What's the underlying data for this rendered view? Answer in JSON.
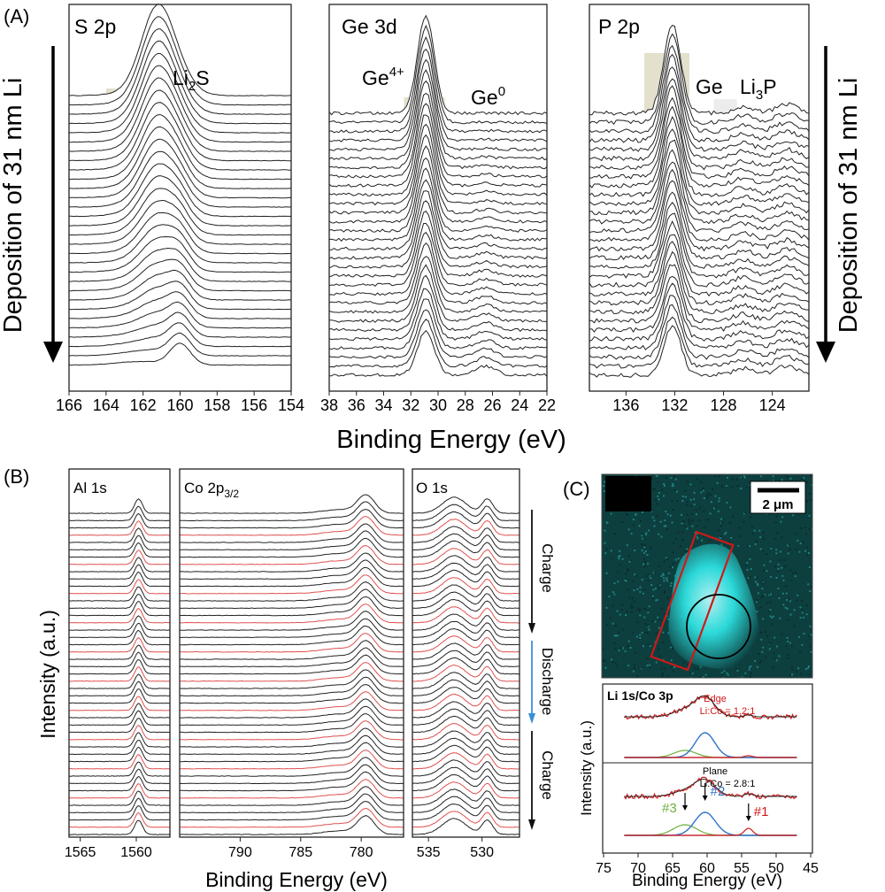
{
  "panel_labels": {
    "a": "(A)",
    "b": "(B)",
    "c": "(C)"
  },
  "panel_a": {
    "side_label": "Deposition of 31 nm Li",
    "xlabel": "Binding Energy (eV)",
    "trace_count": 30,
    "s2p": {
      "title": "S 2p",
      "species": "Li",
      "species_sub": "2",
      "species_tail": "S",
      "ticks": [
        "166",
        "164",
        "162",
        "160",
        "158",
        "156",
        "154"
      ],
      "xlim": [
        166,
        154
      ],
      "main_peak": 161.3,
      "li2s_peak": 160.0,
      "band_main": [
        164.0,
        159.2
      ],
      "band_li2s": [
        161.0,
        159.2
      ]
    },
    "ge3d": {
      "title": "Ge 3d",
      "ox_label": "Ge",
      "ox_sup": "4+",
      "met_label": "Ge",
      "met_sup": "0",
      "ticks": [
        "38",
        "36",
        "34",
        "32",
        "30",
        "28",
        "26",
        "24",
        "22"
      ],
      "xlim": [
        38,
        22
      ],
      "ox_peak": 30.9,
      "met_peak": 26.5,
      "band_main": [
        32.5,
        29.5
      ],
      "band_grey": [
        29.4,
        27.3
      ],
      "band_blue": [
        27.3,
        25.4
      ]
    },
    "p2p": {
      "title": "P 2p",
      "ge_label": "Ge",
      "li3p_label": "Li",
      "li3p_sub": "3",
      "li3p_tail": "P",
      "ticks": [
        "136",
        "132",
        "128",
        "124"
      ],
      "xlim": [
        139,
        121
      ],
      "main_peak": 132.2,
      "li3p_peak": 126.4,
      "band_main": [
        134.5,
        130.8
      ],
      "band_blue": [
        130.8,
        128.8
      ],
      "band_grey": [
        128.8,
        126.9
      ],
      "band_green": [
        126.9,
        125.0
      ]
    }
  },
  "panel_b": {
    "ylabel": "Intensity (a.u.)",
    "xlabel": "Binding Energy (eV)",
    "trace_count": 45,
    "red_every": 4,
    "al1s": {
      "title": "Al 1s",
      "ticks": [
        "1565",
        "1560"
      ],
      "xlim": [
        1566,
        1557
      ],
      "peak": 1559.8
    },
    "co2p": {
      "title": "Co 2p",
      "title_sub": "3/2",
      "ticks": [
        "790",
        "785",
        "780"
      ],
      "xlim": [
        795,
        776.5
      ],
      "peak": 779.6
    },
    "o1s": {
      "title": "O 1s",
      "ticks": [
        "535",
        "530"
      ],
      "xlim": [
        536.5,
        526.5
      ],
      "peaks": [
        532.6,
        529.5
      ]
    },
    "steps": [
      {
        "label": "Charge",
        "color": "#111111"
      },
      {
        "label": "Discharge",
        "color": "#3a8fd6"
      },
      {
        "label": "Charge",
        "color": "#111111"
      }
    ]
  },
  "panel_c": {
    "scale_bar": "2 μm",
    "colors": {
      "map_bg": "#0d3f3f",
      "map_particle": "#2ee6e6",
      "edge_box": "#d01818",
      "fit_red": "#d01818",
      "fit_blue": "#2f74c8",
      "fit_green": "#6cae3a",
      "fit_purple": "#9b4fc8"
    },
    "spectrum_title": "Li 1s/Co 3p",
    "ylabel": "Intensity (a.u.)",
    "xlabel": "Binding Energy (eV)",
    "ticks": [
      "75",
      "70",
      "65",
      "60",
      "55",
      "50",
      "45"
    ],
    "xlim": [
      75,
      45
    ],
    "edge": {
      "label": "Edge",
      "ratio": "Li:Co = 1.2:1"
    },
    "plane": {
      "label": "Plane",
      "ratio": "Li:Co = 2.8:1"
    },
    "components": [
      {
        "name": "#1",
        "center": 54.0,
        "color": "#d01818"
      },
      {
        "name": "#2",
        "center": 60.3,
        "color": "#2f74c8"
      },
      {
        "name": "#3",
        "center": 63.2,
        "color": "#6cae3a"
      }
    ]
  }
}
